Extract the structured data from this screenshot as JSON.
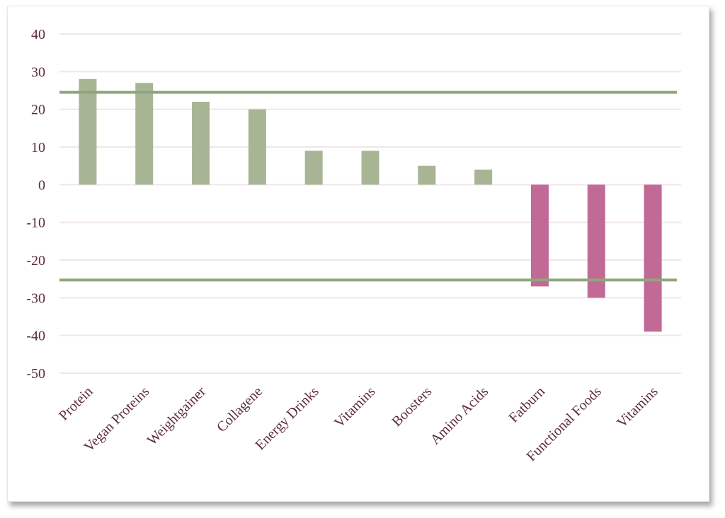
{
  "chart_data": {
    "type": "bar",
    "title": "",
    "xlabel": "",
    "ylabel": "",
    "ylim": [
      -50,
      40
    ],
    "yticks": [
      40,
      30,
      20,
      10,
      0,
      -10,
      -20,
      -30,
      -40,
      -50
    ],
    "grid": true,
    "legend": "none",
    "categories": [
      "Protein",
      "Vegan Proteins",
      "Weightgainer",
      "Collagene",
      "Energy Drinks",
      "Vitamins",
      "Boosters",
      "Amino Acids",
      "Fatburn",
      "Functional Foods",
      "Vitamins"
    ],
    "values": [
      28,
      27,
      22,
      20,
      9,
      9,
      5,
      4,
      -27,
      -30,
      -39
    ],
    "reference_lines": [
      24.5,
      -25.3
    ],
    "colors": {
      "positive": "#a8b595",
      "negative": "#c06a95",
      "reference_line": "#8fa67c",
      "grid": "#f0e6ea",
      "text": "#5b2a3f"
    }
  }
}
